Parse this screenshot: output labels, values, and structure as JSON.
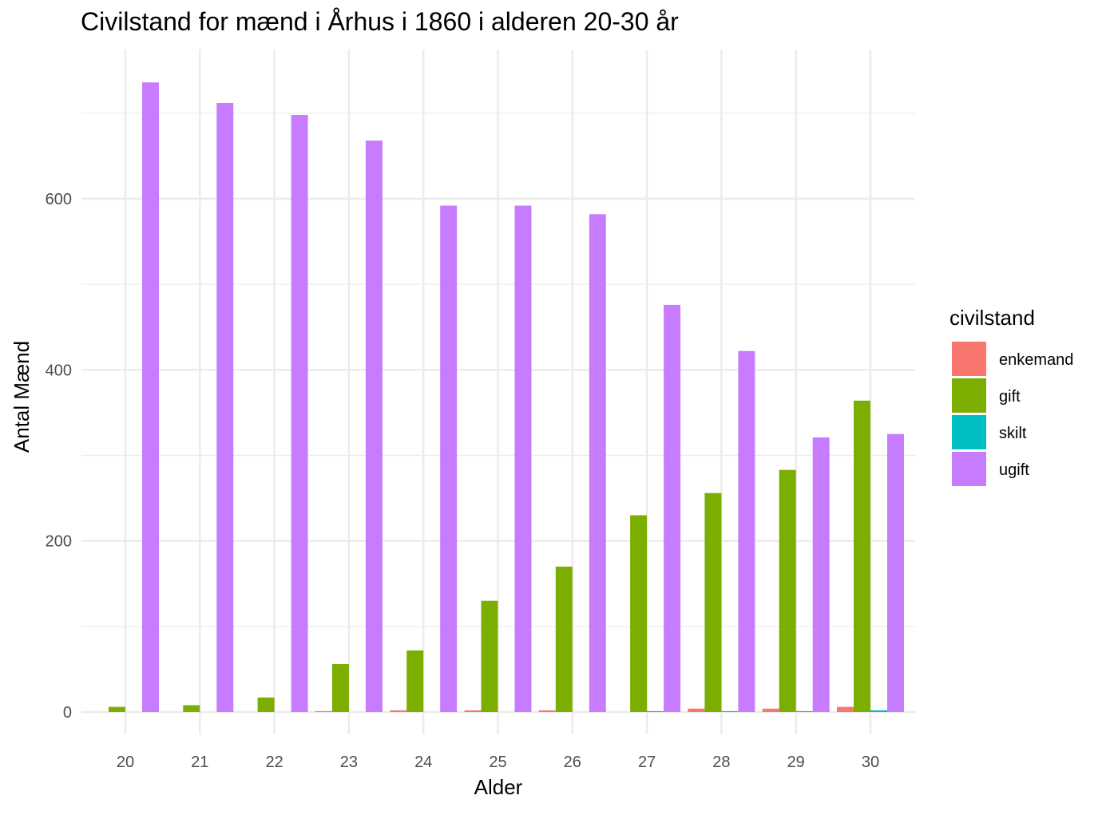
{
  "chart_data": {
    "type": "bar",
    "title": "Civilstand for mænd i Århus i 1860 i alderen 20-30 år",
    "xlabel": "Alder",
    "ylabel": "Antal Mænd",
    "categories": [
      "20",
      "21",
      "22",
      "23",
      "24",
      "25",
      "26",
      "27",
      "28",
      "29",
      "30"
    ],
    "y_ticks": [
      0,
      200,
      400,
      600
    ],
    "ylim": [
      -30,
      780
    ],
    "grid": true,
    "legend": {
      "title": "civilstand",
      "position": "right"
    },
    "series": [
      {
        "name": "enkemand",
        "color": "#F8766D",
        "values": [
          0,
          0,
          0,
          1,
          2,
          2,
          2,
          0,
          4,
          4,
          6
        ]
      },
      {
        "name": "gift",
        "color": "#7CAE00",
        "values": [
          6,
          8,
          17,
          56,
          72,
          130,
          170,
          230,
          256,
          283,
          364
        ]
      },
      {
        "name": "skilt",
        "color": "#00BFC4",
        "values": [
          0,
          0,
          0,
          0,
          0,
          0,
          0,
          1,
          1,
          1,
          2
        ]
      },
      {
        "name": "ugift",
        "color": "#C77CFF",
        "values": [
          736,
          712,
          698,
          668,
          592,
          592,
          582,
          476,
          422,
          321,
          325
        ]
      }
    ]
  }
}
